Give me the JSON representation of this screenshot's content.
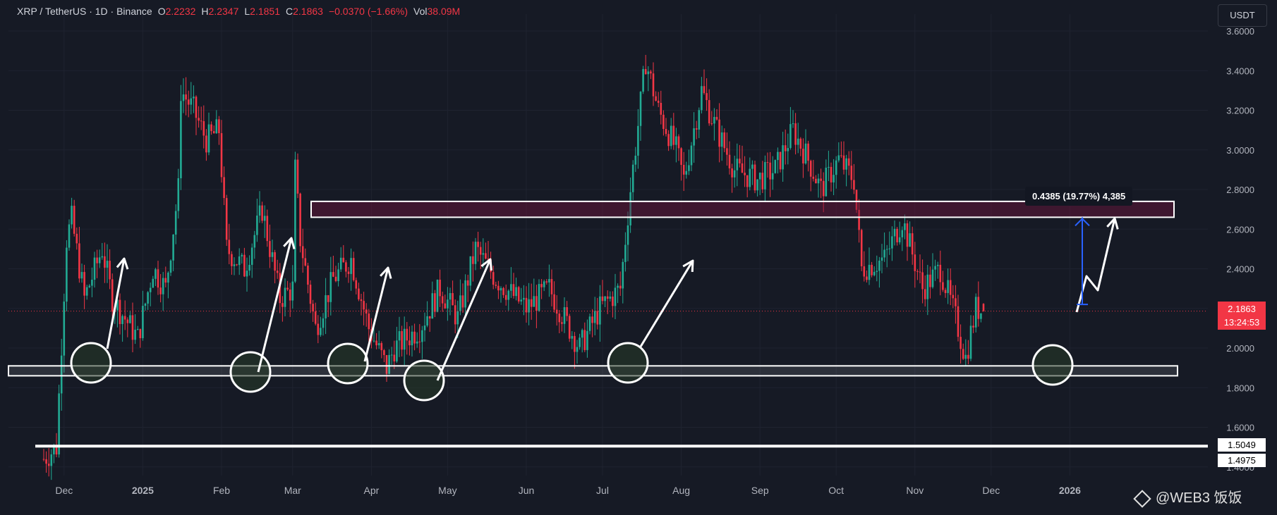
{
  "header": {
    "symbol": "XRP / TetherUS · 1D · Binance",
    "open_label": "O",
    "open": "2.2232",
    "high_label": "H",
    "high": "2.2347",
    "low_label": "L",
    "low": "2.1851",
    "close_label": "C",
    "close": "2.1863",
    "change": "−0.0370 (−1.66%)",
    "vol_label": "Vol",
    "vol": "38.09M"
  },
  "toolbar": {
    "currency": "USDT"
  },
  "last_price": {
    "value": "2.1863",
    "countdown": "13:24:53"
  },
  "line_labels": {
    "support_line_price": "1.5049",
    "support_line_price_2": "1.4975"
  },
  "measurement": {
    "text": "0.4385 (19.77%) 4,385"
  },
  "watermark": {
    "text": "@WEB3 饭饭"
  },
  "colors": {
    "background": "#161a25",
    "up": "#22ab94",
    "down": "#f23645",
    "grid": "#1f2330",
    "axis_text": "#b2b5be"
  },
  "chart_data": {
    "type": "candlestick",
    "title": "XRP / TetherUS · 1D · Binance",
    "x_tick_labels": [
      "Dec",
      "2025",
      "Feb",
      "Mar",
      "Apr",
      "May",
      "Jun",
      "Jul",
      "Aug",
      "Sep",
      "Oct",
      "Nov",
      "Dec",
      "2026"
    ],
    "y_tick_labels": [
      "1.4000",
      "1.6000",
      "1.8000",
      "2.0000",
      "2.2000",
      "2.4000",
      "2.6000",
      "2.8000",
      "3.0000",
      "3.2000",
      "3.4000",
      "3.6000"
    ],
    "ylim": [
      1.38,
      3.67
    ],
    "grid": true,
    "close_path": [
      [
        "2024-11-23",
        1.44
      ],
      [
        "2024-11-28",
        1.5
      ],
      [
        "2024-12-02",
        2.55
      ],
      [
        "2024-12-04",
        2.65
      ],
      [
        "2024-12-09",
        2.25
      ],
      [
        "2024-12-16",
        2.5
      ],
      [
        "2024-12-20",
        2.25
      ],
      [
        "2024-12-30",
        2.05
      ],
      [
        "2025-01-05",
        2.4
      ],
      [
        "2025-01-10",
        2.3
      ],
      [
        "2025-01-15",
        2.8
      ],
      [
        "2025-01-16",
        3.3
      ],
      [
        "2025-01-21",
        3.2
      ],
      [
        "2025-01-26",
        3.05
      ],
      [
        "2025-01-31",
        3.1
      ],
      [
        "2025-02-03",
        2.5
      ],
      [
        "2025-02-10",
        2.4
      ],
      [
        "2025-02-17",
        2.7
      ],
      [
        "2025-02-24",
        2.25
      ],
      [
        "2025-03-01",
        2.3
      ],
      [
        "2025-03-02",
        2.9
      ],
      [
        "2025-03-04",
        2.55
      ],
      [
        "2025-03-10",
        2.1
      ],
      [
        "2025-03-17",
        2.35
      ],
      [
        "2025-03-24",
        2.45
      ],
      [
        "2025-03-31",
        2.1
      ],
      [
        "2025-04-07",
        1.9
      ],
      [
        "2025-04-10",
        2.0
      ],
      [
        "2025-04-20",
        2.1
      ],
      [
        "2025-04-28",
        2.3
      ],
      [
        "2025-05-05",
        2.15
      ],
      [
        "2025-05-12",
        2.5
      ],
      [
        "2025-05-20",
        2.35
      ],
      [
        "2025-06-01",
        2.2
      ],
      [
        "2025-06-10",
        2.3
      ],
      [
        "2025-06-16",
        2.15
      ],
      [
        "2025-06-22",
        2.0
      ],
      [
        "2025-06-30",
        2.2
      ],
      [
        "2025-07-08",
        2.3
      ],
      [
        "2025-07-12",
        2.8
      ],
      [
        "2025-07-18",
        3.45
      ],
      [
        "2025-07-23",
        3.2
      ],
      [
        "2025-07-30",
        3.0
      ],
      [
        "2025-08-02",
        2.85
      ],
      [
        "2025-08-09",
        3.3
      ],
      [
        "2025-08-15",
        3.1
      ],
      [
        "2025-08-22",
        2.9
      ],
      [
        "2025-08-31",
        2.85
      ],
      [
        "2025-09-07",
        2.9
      ],
      [
        "2025-09-14",
        3.1
      ],
      [
        "2025-09-20",
        2.95
      ],
      [
        "2025-09-25",
        2.8
      ],
      [
        "2025-10-02",
        2.95
      ],
      [
        "2025-10-08",
        2.85
      ],
      [
        "2025-10-11",
        2.4
      ],
      [
        "2025-10-20",
        2.45
      ],
      [
        "2025-10-27",
        2.65
      ],
      [
        "2025-11-04",
        2.3
      ],
      [
        "2025-11-11",
        2.4
      ],
      [
        "2025-11-17",
        2.15
      ],
      [
        "2025-11-21",
        1.95
      ],
      [
        "2025-11-25",
        2.2
      ],
      [
        "2025-11-28",
        2.1863
      ]
    ],
    "drawings": {
      "resistance_zone": [
        2.66,
        2.74
      ],
      "support_zone": [
        1.86,
        1.91
      ],
      "support_line": 1.5049,
      "measure_from": 2.22,
      "measure_to": 2.66
    }
  }
}
